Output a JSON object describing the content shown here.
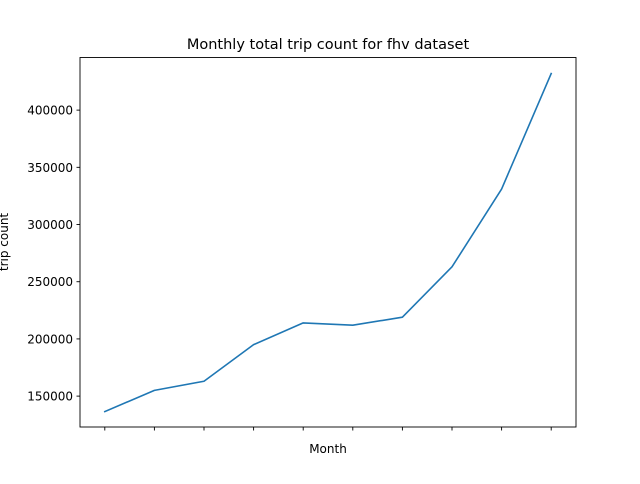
{
  "chart_data": {
    "type": "line",
    "title": "Monthly total trip count for fhv dataset",
    "xlabel": "Month",
    "ylabel": "trip count",
    "x": [
      1,
      2,
      3,
      4,
      5,
      6,
      7,
      8,
      9,
      10
    ],
    "xticklabels": [
      "",
      "",
      "",
      "",
      "",
      "",
      "",
      "",
      "",
      ""
    ],
    "series": [
      {
        "values": [
          136500,
          155000,
          163000,
          195000,
          214000,
          212000,
          219000,
          263000,
          331000,
          432000
        ]
      }
    ],
    "xlim": [
      0.5,
      10.5
    ],
    "ylim": [
      123000,
      446000
    ],
    "yticks": [
      150000,
      200000,
      250000,
      300000,
      350000,
      400000
    ],
    "grid": false,
    "line_color": "#1f77b4"
  }
}
